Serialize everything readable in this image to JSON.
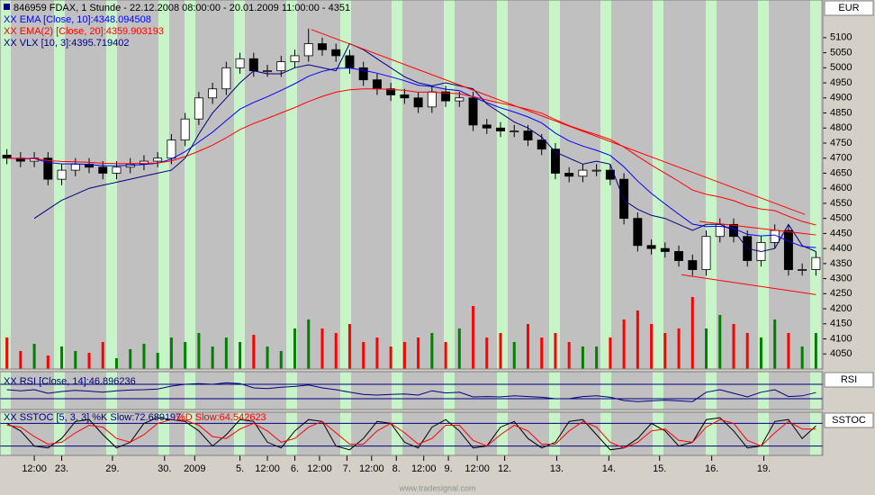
{
  "header": {
    "title": "846959 FDAX, 1 Stunde - 22.12.2008 08:00:00 - 20.01.2009 11:00:00 - 4351",
    "currency": "EUR"
  },
  "chart_data": {
    "type": "candlestick",
    "open": [
      4710,
      4700,
      4690,
      4700,
      4630,
      4660,
      4680,
      4670,
      4650,
      4670,
      4680,
      4690,
      4700,
      4760,
      4830,
      4900,
      4930,
      5000,
      5030,
      4990,
      4990,
      5020,
      5040,
      5080,
      5060,
      5040,
      5000,
      4960,
      4930,
      4910,
      4900,
      4870,
      4920,
      4890,
      4900,
      4810,
      4800,
      4790,
      4790,
      4760,
      4730,
      4650,
      4640,
      4660,
      4660,
      4630,
      4500,
      4410,
      4400,
      4390,
      4360,
      4330,
      4440,
      4480,
      4440,
      4360,
      4420,
      4460,
      4330,
      4330
    ],
    "high": [
      4730,
      4720,
      4720,
      4720,
      4680,
      4700,
      4700,
      4690,
      4690,
      4700,
      4710,
      4720,
      4780,
      4850,
      4920,
      4950,
      5020,
      5050,
      5050,
      5010,
      5040,
      5060,
      5130,
      5100,
      5080,
      5060,
      5020,
      4980,
      4950,
      4930,
      4920,
      4940,
      4940,
      4920,
      4920,
      4830,
      4820,
      4810,
      4810,
      4780,
      4750,
      4670,
      4680,
      4680,
      4680,
      4650,
      4520,
      4430,
      4420,
      4410,
      4380,
      4460,
      4500,
      4500,
      4460,
      4440,
      4480,
      4480,
      4350,
      4390
    ],
    "low": [
      4680,
      4670,
      4670,
      4610,
      4610,
      4640,
      4650,
      4630,
      4630,
      4650,
      4660,
      4670,
      4680,
      4740,
      4810,
      4880,
      4910,
      4980,
      4970,
      4970,
      4970,
      5000,
      5020,
      5040,
      5020,
      4980,
      4940,
      4910,
      4890,
      4880,
      4850,
      4850,
      4870,
      4870,
      4790,
      4780,
      4770,
      4770,
      4740,
      4710,
      4630,
      4620,
      4620,
      4640,
      4610,
      4480,
      4390,
      4380,
      4370,
      4340,
      4310,
      4310,
      4420,
      4420,
      4340,
      4340,
      4400,
      4310,
      4310,
      4310
    ],
    "close": [
      4700,
      4690,
      4700,
      4630,
      4660,
      4680,
      4670,
      4650,
      4670,
      4680,
      4690,
      4700,
      4760,
      4830,
      4900,
      4930,
      5000,
      5030,
      4990,
      4990,
      5020,
      5040,
      5080,
      5060,
      5040,
      5000,
      4960,
      4930,
      4910,
      4900,
      4870,
      4920,
      4890,
      4900,
      4810,
      4800,
      4790,
      4790,
      4760,
      4730,
      4650,
      4640,
      4660,
      4660,
      4630,
      4500,
      4410,
      4400,
      4390,
      4360,
      4330,
      4440,
      4480,
      4440,
      4360,
      4420,
      4460,
      4330,
      4330,
      4370
    ],
    "up_color": "#ffffff",
    "down_color": "#000000",
    "xlim": [
      0,
      60
    ],
    "ylim": [
      4000,
      5225
    ],
    "yticks": [
      4050,
      4100,
      4150,
      4200,
      4250,
      4300,
      4350,
      4400,
      4450,
      4500,
      4550,
      4600,
      4650,
      4700,
      4750,
      4800,
      4850,
      4900,
      4950,
      5000,
      5050,
      5100
    ],
    "xticks": [
      {
        "value": 2.5,
        "label": "12:00"
      },
      {
        "value": 4.5,
        "label": "23."
      },
      {
        "value": 8.2,
        "label": "29."
      },
      {
        "value": 12,
        "label": "30."
      },
      {
        "value": 14.2,
        "label": "2009"
      },
      {
        "value": 17.5,
        "label": "5."
      },
      {
        "value": 19.5,
        "label": "12:00"
      },
      {
        "value": 21.5,
        "label": "6."
      },
      {
        "value": 23.3,
        "label": "12:00"
      },
      {
        "value": 25.3,
        "label": "7."
      },
      {
        "value": 27.1,
        "label": "12:00"
      },
      {
        "value": 28.9,
        "label": "8."
      },
      {
        "value": 30.9,
        "label": "12:00"
      },
      {
        "value": 32.7,
        "label": "9."
      },
      {
        "value": 34.8,
        "label": "12:00"
      },
      {
        "value": 36.8,
        "label": "12."
      },
      {
        "value": 40.6,
        "label": "13."
      },
      {
        "value": 44.4,
        "label": "14."
      },
      {
        "value": 48.1,
        "label": "15."
      },
      {
        "value": 51.9,
        "label": "16."
      },
      {
        "value": 55.7,
        "label": "19."
      }
    ],
    "series": [
      {
        "name": "XX EMA [Close, 10]:4348.094508",
        "color": "#0000ff",
        "values": [
          4700,
          4698,
          4698,
          4686,
          4681,
          4681,
          4679,
          4675,
          4675,
          4676,
          4679,
          4683,
          4697,
          4722,
          4754,
          4786,
          4825,
          4863,
          4885,
          4904,
          4925,
          4947,
          4972,
          4988,
          4998,
          4999,
          4992,
          4982,
          4970,
          4957,
          4942,
          4938,
          4929,
          4924,
          4903,
          4884,
          4867,
          4853,
          4837,
          4817,
          4783,
          4757,
          4740,
          4726,
          4709,
          4671,
          4624,
          4583,
          4548,
          4514,
          4481,
          4473,
          4474,
          4467,
          4447,
          4442,
          4445,
          4424,
          4407,
          4403
        ]
      },
      {
        "name": "XX EMA(2) [Close, 20]:4359.903193",
        "color": "#ff0000",
        "values": [
          4700,
          4699,
          4699,
          4692,
          4689,
          4688,
          4686,
          4683,
          4682,
          4682,
          4683,
          4684,
          4691,
          4705,
          4723,
          4743,
          4768,
          4795,
          4815,
          4832,
          4850,
          4868,
          4888,
          4905,
          4919,
          4927,
          4930,
          4930,
          4928,
          4925,
          4919,
          4919,
          4916,
          4914,
          4904,
          4893,
          4883,
          4873,
          4862,
          4849,
          4828,
          4808,
          4792,
          4778,
          4762,
          4737,
          4706,
          4677,
          4650,
          4623,
          4594,
          4580,
          4571,
          4559,
          4541,
          4531,
          4526,
          4507,
          4490,
          4478
        ]
      },
      {
        "name": "XX VLX [10, 3]:4395.719402",
        "color": "#000080",
        "values": [
          null,
          null,
          4500,
          4530,
          4560,
          4580,
          4600,
          4610,
          4620,
          4630,
          4640,
          4650,
          4660,
          4700,
          4780,
          4850,
          4900,
          4950,
          4990,
          4980,
          4980,
          5000,
          5010,
          5000,
          4990,
          5080,
          5060,
          5030,
          5000,
          4970,
          4950,
          4940,
          4950,
          4940,
          4930,
          4880,
          4850,
          4820,
          4800,
          4770,
          4720,
          4700,
          4680,
          4690,
          4680,
          4560,
          4530,
          4510,
          4500,
          4480,
          4460,
          4480,
          4480,
          4460,
          4400,
          4390,
          4400,
          4480,
          4410,
          4390
        ]
      }
    ],
    "volume": {
      "up_color": "#008000",
      "down_color": "#ff0000",
      "values": [
        35,
        20,
        28,
        15,
        25,
        20,
        18,
        30,
        12,
        22,
        28,
        18,
        35,
        30,
        40,
        25,
        35,
        30,
        38,
        25,
        20,
        45,
        55,
        45,
        40,
        50,
        30,
        35,
        25,
        30,
        35,
        40,
        30,
        45,
        70,
        35,
        40,
        30,
        50,
        35,
        40,
        30,
        25,
        25,
        35,
        55,
        65,
        50,
        40,
        45,
        80,
        45,
        60,
        50,
        40,
        35,
        55,
        40,
        25,
        40
      ]
    },
    "trendline_color": "#ff0000",
    "trendlines": [
      {
        "x": [
          22.7,
          58.7
        ],
        "y": [
          5127,
          4513
        ]
      },
      {
        "x": [
          51,
          59.5
        ],
        "y": [
          4490,
          4445
        ]
      },
      {
        "x": [
          49.7,
          59.5
        ],
        "y": [
          4313,
          4247
        ]
      }
    ]
  },
  "rsi": {
    "label": "RSI",
    "name": "XX RSI [Close, 14]:46.896236",
    "color": "#000080",
    "ylim": [
      0,
      100
    ],
    "levels": [
      30,
      70
    ],
    "values": [
      55,
      52,
      55,
      45,
      50,
      53,
      51,
      48,
      52,
      54,
      55,
      57,
      65,
      70,
      72,
      70,
      74,
      72,
      60,
      58,
      62,
      64,
      68,
      60,
      55,
      48,
      42,
      40,
      42,
      43,
      40,
      52,
      46,
      48,
      35,
      36,
      35,
      38,
      36,
      34,
      30,
      30,
      36,
      38,
      34,
      25,
      22,
      24,
      26,
      24,
      22,
      48,
      55,
      45,
      35,
      48,
      55,
      36,
      38,
      47
    ]
  },
  "sstoc": {
    "label": "SSTOC",
    "ylim": [
      0,
      100
    ],
    "levels": [
      20,
      80
    ],
    "series": [
      {
        "name": "XX SSTOC [5, 3, 3] %K Slow:72.689197",
        "color": "#000000",
        "values": [
          80,
          60,
          20,
          15,
          40,
          85,
          90,
          50,
          15,
          30,
          80,
          95,
          90,
          85,
          60,
          20,
          50,
          90,
          85,
          30,
          15,
          60,
          90,
          85,
          20,
          10,
          40,
          85,
          80,
          30,
          15,
          70,
          90,
          60,
          15,
          20,
          70,
          85,
          40,
          15,
          30,
          85,
          90,
          50,
          10,
          15,
          40,
          80,
          60,
          20,
          30,
          90,
          95,
          60,
          15,
          20,
          85,
          90,
          40,
          73
        ]
      },
      {
        "name": "%D Slow:64.542623",
        "color": "#ff0000",
        "values": [
          75,
          70,
          45,
          25,
          30,
          55,
          75,
          70,
          40,
          30,
          50,
          80,
          90,
          88,
          75,
          45,
          40,
          65,
          80,
          60,
          30,
          40,
          70,
          85,
          55,
          25,
          25,
          60,
          80,
          55,
          25,
          40,
          75,
          75,
          35,
          20,
          50,
          75,
          60,
          25,
          25,
          60,
          85,
          70,
          30,
          15,
          30,
          60,
          65,
          35,
          30,
          70,
          90,
          80,
          35,
          20,
          55,
          85,
          65,
          65
        ]
      }
    ]
  },
  "footer": "www.tradesignal.com"
}
